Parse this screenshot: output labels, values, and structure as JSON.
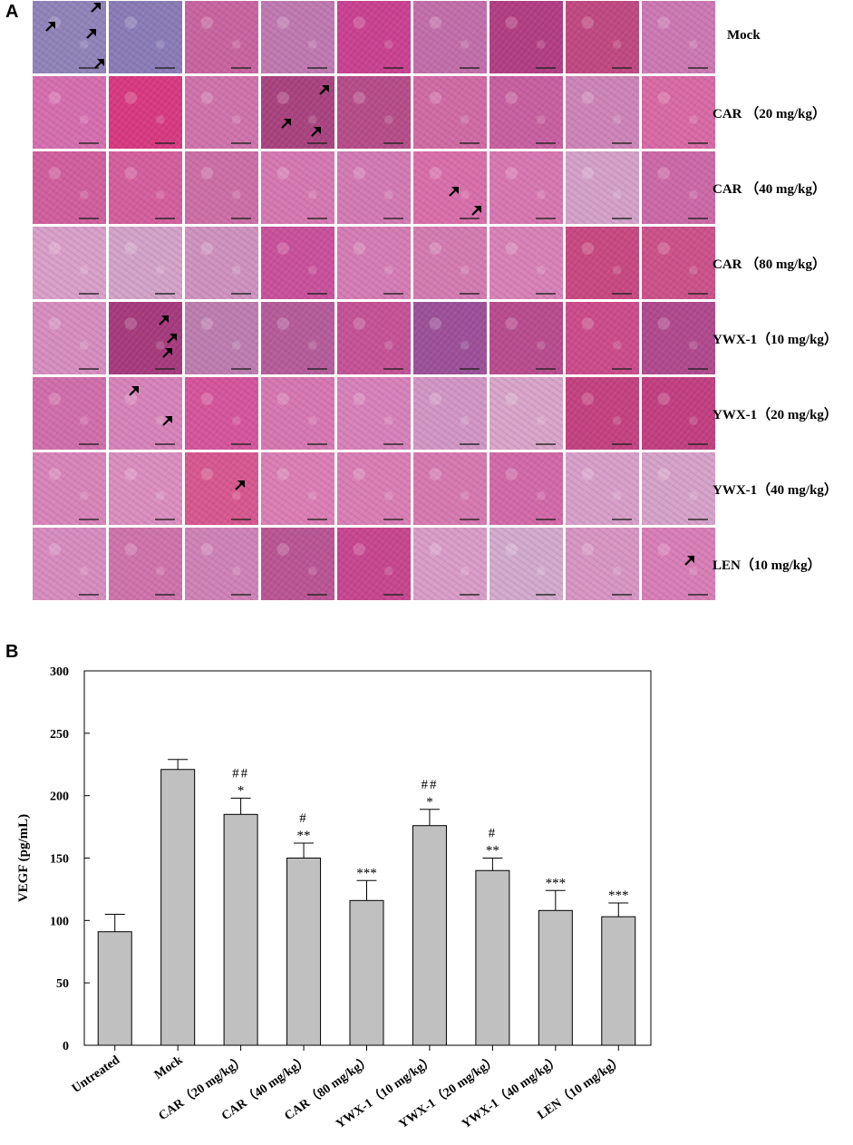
{
  "panel_a": {
    "letter": "A",
    "rows": [
      {
        "label": "Mock",
        "tone": [
          "#8f84b7",
          "#8a7cb6",
          "#c8659e",
          "#bf7aaf",
          "#c9428f",
          "#c26fa9",
          "#b23e82",
          "#c0497f",
          "#cc79b1"
        ],
        "arrows": [
          [
            0,
            0.85,
            0.1
          ],
          [
            0,
            0.25,
            0.35
          ],
          [
            0,
            0.8,
            0.45
          ],
          [
            0,
            0.9,
            0.85
          ]
        ]
      },
      {
        "label": "CAR （20 mg/kg）",
        "tone": [
          "#d66fae",
          "#d8397f",
          "#cf74aa",
          "#a9437d",
          "#b64d87",
          "#d06ba3",
          "#c8609f",
          "#cd85b6",
          "#d86aa3"
        ],
        "arrows": [
          [
            3,
            0.85,
            0.2
          ],
          [
            3,
            0.35,
            0.65
          ],
          [
            3,
            0.75,
            0.75
          ]
        ]
      },
      {
        "label": "CAR （40 mg/kg）",
        "tone": [
          "#d05f9c",
          "#d45f9c",
          "#cc6fa5",
          "#d579b0",
          "#d37bb2",
          "#d96fa9",
          "#d878b0",
          "#d4a2c8",
          "#cc6aa5"
        ],
        "arrows": [
          [
            5,
            0.55,
            0.55
          ],
          [
            5,
            0.85,
            0.8
          ]
        ]
      },
      {
        "label": "CAR （80 mg/kg）",
        "tone": [
          "#d9a1c8",
          "#d2a4c7",
          "#cf93be",
          "#c9519a",
          "#d57db3",
          "#d47cb0",
          "#d882b6",
          "#c8497f",
          "#cc5288"
        ]
      },
      {
        "label": "YWX-1（10 mg/kg）",
        "tone": [
          "#d68fbe",
          "#a63b7c",
          "#bd7eae",
          "#b55d98",
          "#c45394",
          "#9c5197",
          "#b84c8c",
          "#cc4c89",
          "#b04a8c"
        ],
        "arrows": [
          [
            1,
            0.75,
            0.25
          ],
          [
            1,
            0.85,
            0.5
          ],
          [
            1,
            0.8,
            0.7
          ]
        ]
      },
      {
        "label": "YWX-1（20 mg/kg）",
        "tone": [
          "#d06fa9",
          "#d784b8",
          "#d5559a",
          "#d778b0",
          "#d782b8",
          "#d197c3",
          "#d8a6c8",
          "#c4427f",
          "#c23f7f"
        ],
        "arrows": [
          [
            1,
            0.35,
            0.2
          ],
          [
            1,
            0.8,
            0.6
          ]
        ]
      },
      {
        "label": "YWX-1（40 mg/kg）",
        "tone": [
          "#d885b8",
          "#db8fbe",
          "#d7588e",
          "#db7fb3",
          "#d97fb3",
          "#d67aaf",
          "#d26aa6",
          "#d8a0c8",
          "#d6a3c8"
        ],
        "arrows": [
          [
            2,
            0.75,
            0.45
          ]
        ]
      },
      {
        "label": "LEN（10 mg/kg）",
        "tone": [
          "#d68dbd",
          "#cf74aa",
          "#cf83b5",
          "#b95691",
          "#c7468d",
          "#d99dc6",
          "#d3abcc",
          "#d796c2",
          "#d87fb5"
        ],
        "arrows": [
          [
            8,
            0.65,
            0.45
          ]
        ]
      }
    ]
  },
  "panel_b": {
    "letter": "B"
  },
  "chart_data": {
    "type": "bar",
    "ylabel": "VEGF (pg/mL)",
    "xlabel": "",
    "ylim": [
      0,
      300
    ],
    "yticks": [
      0,
      50,
      100,
      150,
      200,
      250,
      300
    ],
    "categories": [
      "Untreated",
      "Mock",
      "CAR（20 mg/kg）",
      "CAR（40 mg/kg）",
      "CAR（80 mg/kg）",
      "YWX-1（10 mg/kg）",
      "YWX-1（20 mg/kg）",
      "YWX-1（40 mg/kg）",
      "LEN（10 mg/kg）"
    ],
    "values": [
      91,
      221,
      185,
      150,
      116,
      176,
      140,
      108,
      103
    ],
    "errors": [
      14,
      8,
      13,
      12,
      16,
      13,
      10,
      16,
      11
    ],
    "annotations": [
      {
        "sym": "",
        "hash": ""
      },
      {
        "sym": "",
        "hash": ""
      },
      {
        "sym": "*",
        "hash": "##"
      },
      {
        "sym": "**",
        "hash": "#"
      },
      {
        "sym": "***",
        "hash": ""
      },
      {
        "sym": "*",
        "hash": "##"
      },
      {
        "sym": "**",
        "hash": "#"
      },
      {
        "sym": "***",
        "hash": ""
      },
      {
        "sym": "***",
        "hash": ""
      }
    ],
    "bar_color": "#c0c0c0",
    "grid": false
  }
}
